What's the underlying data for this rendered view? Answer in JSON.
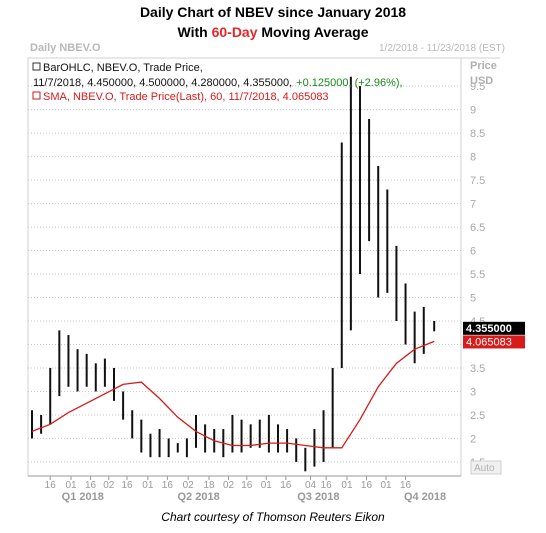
{
  "title": {
    "line1": "Daily Chart of NBEV since January 2018",
    "line2_prefix": "With ",
    "line2_highlight": "60-Day",
    "line2_suffix": " Moving Average"
  },
  "header": {
    "left_label": "Daily NBEV.O",
    "date_range": "1/2/2018 - 11/23/2018 (EST)",
    "axis_title_1": "Price",
    "axis_title_2": "USD"
  },
  "legend": {
    "bar_line1": "BarOHLC, NBEV.O, Trade Price,",
    "bar_line2_prefix": "11/7/2018, 4.450000, 4.500000, 4.280000, 4.355000,",
    "bar_line2_change": "+0.125000, (+2.96%),",
    "sma_line": "SMA, NBEV.O, Trade Price(Last), 60, 11/7/2018, 4.065083"
  },
  "price_badges": {
    "last": "4.355000",
    "sma": "4.065083"
  },
  "auto_label": "Auto",
  "credit": "Chart courtesy of Thomson Reuters Eikon",
  "colors": {
    "bars": "#111111",
    "sma": "#d71a1a",
    "change": "#1a8a1a",
    "grid": "#c8c8c8",
    "muted": "#b8b8b8"
  },
  "chart_data": {
    "type": "line",
    "title": "Daily Chart of NBEV since January 2018",
    "subtitle": "With 60-Day Moving Average",
    "ylabel": "Price USD",
    "ylim": [
      1.2,
      10.1
    ],
    "y_ticks": [
      1.5,
      2,
      2.5,
      3,
      3.5,
      4,
      4.5,
      5,
      5.5,
      6,
      6.5,
      7,
      7.5,
      8,
      8.5,
      9,
      9.5
    ],
    "x_tick_labels": [
      "16",
      "01",
      "16",
      "02",
      "16",
      "01",
      "16",
      "02",
      "18",
      "02",
      "16",
      "01",
      "16",
      "04",
      "16",
      "01",
      "16",
      "01",
      "16"
    ],
    "quarter_labels": [
      "Q1 2018",
      "Q2 2018",
      "Q3 2018",
      "Q4 2018"
    ],
    "grid": true,
    "series": [
      {
        "name": "BarOHLC, NBEV.O, Trade Price",
        "style": "ohlc",
        "x": [
          "2018-01-02",
          "2018-01-09",
          "2018-01-16",
          "2018-01-23",
          "2018-01-30",
          "2018-02-06",
          "2018-02-13",
          "2018-02-20",
          "2018-02-27",
          "2018-03-06",
          "2018-03-13",
          "2018-03-20",
          "2018-03-27",
          "2018-04-03",
          "2018-04-10",
          "2018-04-17",
          "2018-04-24",
          "2018-05-01",
          "2018-05-08",
          "2018-05-15",
          "2018-05-22",
          "2018-05-29",
          "2018-06-05",
          "2018-06-12",
          "2018-06-19",
          "2018-06-26",
          "2018-07-03",
          "2018-07-10",
          "2018-07-17",
          "2018-07-24",
          "2018-07-31",
          "2018-08-07",
          "2018-08-14",
          "2018-08-21",
          "2018-08-28",
          "2018-09-04",
          "2018-09-11",
          "2018-09-18",
          "2018-09-25",
          "2018-10-02",
          "2018-10-09",
          "2018-10-16",
          "2018-10-23",
          "2018-10-30",
          "2018-11-07"
        ],
        "high": [
          2.6,
          2.5,
          3.5,
          4.3,
          4.2,
          3.9,
          3.8,
          3.6,
          3.7,
          3.5,
          3.0,
          2.6,
          2.4,
          2.1,
          2.2,
          2.0,
          1.9,
          2.0,
          2.5,
          2.3,
          2.2,
          2.2,
          2.5,
          2.4,
          2.3,
          2.4,
          2.5,
          2.3,
          2.2,
          2.0,
          1.8,
          2.2,
          2.6,
          3.5,
          8.3,
          9.7,
          9.5,
          8.8,
          7.8,
          7.3,
          6.1,
          5.3,
          4.7,
          4.8,
          4.5
        ],
        "low": [
          2.0,
          2.1,
          2.3,
          2.9,
          3.1,
          3.0,
          3.1,
          3.0,
          3.1,
          2.8,
          2.4,
          2.0,
          1.7,
          1.6,
          1.6,
          1.6,
          1.7,
          1.6,
          1.8,
          1.7,
          1.7,
          1.6,
          1.7,
          1.7,
          1.8,
          1.8,
          1.7,
          1.7,
          1.7,
          1.5,
          1.3,
          1.4,
          1.5,
          1.8,
          3.5,
          4.3,
          5.5,
          6.2,
          5.0,
          5.1,
          4.5,
          4.0,
          3.6,
          3.8,
          4.28
        ]
      },
      {
        "name": "SMA, NBEV.O, Trade Price(Last), 60",
        "style": "line",
        "x": [
          "2018-01-02",
          "2018-01-16",
          "2018-01-30",
          "2018-02-13",
          "2018-02-27",
          "2018-03-13",
          "2018-03-27",
          "2018-04-10",
          "2018-04-24",
          "2018-05-08",
          "2018-05-22",
          "2018-06-05",
          "2018-06-19",
          "2018-07-03",
          "2018-07-17",
          "2018-07-31",
          "2018-08-14",
          "2018-08-28",
          "2018-09-11",
          "2018-09-25",
          "2018-10-09",
          "2018-10-23",
          "2018-11-07"
        ],
        "values": [
          2.15,
          2.3,
          2.55,
          2.75,
          2.95,
          3.15,
          3.2,
          2.85,
          2.45,
          2.15,
          1.95,
          1.85,
          1.85,
          1.9,
          1.9,
          1.85,
          1.8,
          1.8,
          2.4,
          3.1,
          3.6,
          3.9,
          4.065
        ]
      }
    ],
    "annotations": [
      {
        "label": "4.355000",
        "value": 4.355
      },
      {
        "label": "4.065083",
        "value": 4.065083
      }
    ]
  }
}
